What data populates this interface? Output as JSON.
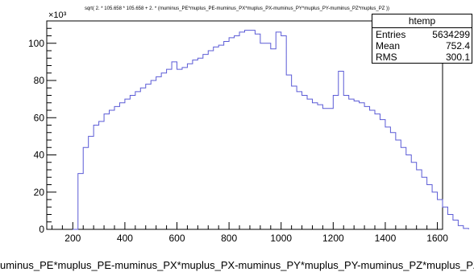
{
  "chart_data": {
    "type": "histogram",
    "title": "sqrt( 2. * 105.658 * 105.658 +  2. * (muminus_PE*muplus_PE-muminus_PX*muplus_PX-muminus_PY*muplus_PY-muminus_PZ*muplus_PZ ))",
    "xlabel": "uminus_PE*muplus_PE-muminus_PX*muplus_PX-muminus_PY*muplus_PY-muminus_PZ*muplus_PZ ))",
    "ylabel": "",
    "y_multiplier": "×10³",
    "xlim": [
      100,
      1620
    ],
    "ylim": [
      0,
      112
    ],
    "x_ticks": [
      200,
      400,
      600,
      800,
      1000,
      1200,
      1400,
      1600
    ],
    "y_ticks": [
      0,
      20,
      40,
      60,
      80,
      100
    ],
    "line_color": "#5b5bd6",
    "bin_edges_start": 200,
    "bin_width": 20,
    "values": [
      0,
      30,
      44,
      50,
      56,
      58,
      62,
      64,
      66,
      68,
      70,
      72,
      74,
      76,
      78,
      80,
      82,
      84,
      86,
      90,
      86,
      87,
      89,
      91,
      92,
      94,
      96,
      98,
      99,
      101,
      103,
      104,
      106,
      107,
      107,
      105,
      100,
      100,
      97,
      106,
      104,
      83,
      77,
      74,
      72,
      70,
      68,
      67,
      65,
      65,
      72,
      85,
      72,
      70,
      69,
      68,
      66,
      64,
      62,
      59,
      55,
      52,
      48,
      44,
      40,
      36,
      32,
      28,
      24,
      20,
      16,
      12,
      8,
      5,
      2,
      0.5
    ]
  },
  "stats": {
    "title": "htemp",
    "rows": [
      {
        "key": "Entries",
        "value": "5634299"
      },
      {
        "key": "Mean",
        "value": "752.4"
      },
      {
        "key": "RMS",
        "value": "300.1"
      }
    ]
  }
}
